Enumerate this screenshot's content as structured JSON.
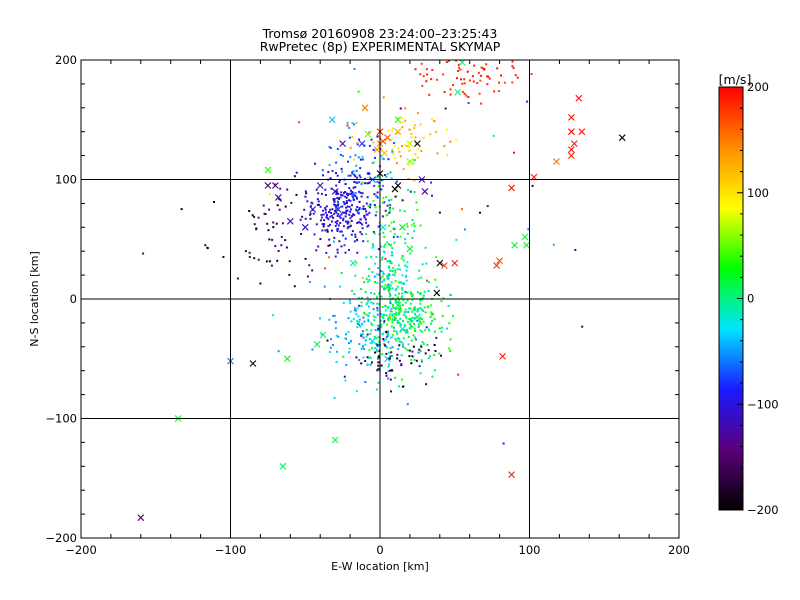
{
  "chart_data": {
    "type": "scatter",
    "title": "Tromsø 20160908 23:24:00–23:25:43",
    "subtitle": "RwPretec (8p) EXPERIMENTAL SKYMAP",
    "xlabel": "E-W location [km]",
    "ylabel": "N-S location [km]",
    "xlim": [
      -200,
      200
    ],
    "ylim": [
      -200,
      200
    ],
    "xticks": [
      -200,
      -100,
      0,
      100,
      200
    ],
    "yticks": [
      -200,
      -100,
      0,
      100,
      200
    ],
    "grid": true,
    "colorbar": {
      "label": "[m/s]",
      "range": [
        -200,
        200
      ],
      "ticks": [
        -200,
        -100,
        0,
        100,
        200
      ],
      "colormap": [
        "#000000",
        "#5a007a",
        "#1a1aff",
        "#00e5ff",
        "#00ff00",
        "#ffff00",
        "#ff8c00",
        "#ff0000"
      ]
    },
    "series": [
      {
        "marker": "cross",
        "points": [
          [
            -160,
            -183,
            -150
          ],
          [
            -135,
            -100,
            20
          ],
          [
            -85,
            -54,
            -180
          ],
          [
            -65,
            -140,
            10
          ],
          [
            -62,
            -50,
            30
          ],
          [
            -100,
            -52,
            -60
          ],
          [
            -75,
            95,
            -160
          ],
          [
            -70,
            95,
            -140
          ],
          [
            -68,
            85,
            -120
          ],
          [
            -60,
            65,
            -120
          ],
          [
            -50,
            60,
            -110
          ],
          [
            -30,
            90,
            -120
          ],
          [
            -28,
            75,
            -110
          ],
          [
            -32,
            150,
            -40
          ],
          [
            -30,
            -118,
            10
          ],
          [
            -38,
            -30,
            0
          ],
          [
            -42,
            -38,
            10
          ],
          [
            -75,
            108,
            40
          ],
          [
            -25,
            130,
            -120
          ],
          [
            -12,
            130,
            -80
          ],
          [
            -10,
            160,
            150
          ],
          [
            -8,
            138,
            50
          ],
          [
            -5,
            100,
            -70
          ],
          [
            0,
            140,
            180
          ],
          [
            0,
            130,
            150
          ],
          [
            2,
            132,
            170
          ],
          [
            5,
            135,
            160
          ],
          [
            -2,
            125,
            140
          ],
          [
            3,
            122,
            120
          ],
          [
            12,
            95,
            -200
          ],
          [
            12,
            150,
            40
          ],
          [
            15,
            60,
            20
          ],
          [
            20,
            42,
            20
          ],
          [
            20,
            130,
            70
          ],
          [
            20,
            115,
            60
          ],
          [
            28,
            100,
            -120
          ],
          [
            25,
            130,
            -200
          ],
          [
            30,
            90,
            -130
          ],
          [
            40,
            30,
            -200
          ],
          [
            38,
            5,
            -200
          ],
          [
            43,
            28,
            170
          ],
          [
            50,
            30,
            190
          ],
          [
            52,
            173,
            0
          ],
          [
            55,
            198,
            0
          ],
          [
            78,
            28,
            180
          ],
          [
            80,
            32,
            170
          ],
          [
            82,
            -48,
            190
          ],
          [
            88,
            93,
            195
          ],
          [
            90,
            45,
            20
          ],
          [
            88,
            -147,
            190
          ],
          [
            97,
            52,
            15
          ],
          [
            98,
            45,
            20
          ],
          [
            103,
            102,
            190
          ],
          [
            118,
            115,
            150
          ],
          [
            128,
            125,
            190
          ],
          [
            128,
            120,
            185
          ],
          [
            128,
            140,
            195
          ],
          [
            128,
            152,
            190
          ],
          [
            130,
            130,
            190
          ],
          [
            133,
            168,
            195
          ],
          [
            135,
            140,
            190
          ],
          [
            162,
            135,
            -200
          ],
          [
            0,
            105,
            -200
          ],
          [
            10,
            92,
            -200
          ],
          [
            2,
            60,
            -20
          ],
          [
            5,
            10,
            20
          ],
          [
            12,
            -5,
            10
          ],
          [
            25,
            -15,
            10
          ],
          [
            -5,
            -35,
            -30
          ],
          [
            5,
            -50,
            -40
          ],
          [
            15,
            -25,
            -20
          ],
          [
            -18,
            30,
            -10
          ],
          [
            -40,
            95,
            -110
          ],
          [
            -45,
            75,
            -100
          ],
          [
            12,
            140,
            130
          ]
        ]
      },
      {
        "marker": "dot",
        "clusters": [
          {
            "cx": -25,
            "cy": 75,
            "sx": 12,
            "sy": 15,
            "n": 260,
            "vmin": -120,
            "vmax": -80
          },
          {
            "cx": -15,
            "cy": 105,
            "sx": 15,
            "sy": 20,
            "n": 90,
            "vmin": -100,
            "vmax": -30
          },
          {
            "cx": -70,
            "cy": 55,
            "sx": 22,
            "sy": 20,
            "n": 70,
            "vmin": -200,
            "vmax": -130
          },
          {
            "cx": 5,
            "cy": 20,
            "sx": 10,
            "sy": 20,
            "n": 120,
            "vmin": -50,
            "vmax": 20
          },
          {
            "cx": 15,
            "cy": -15,
            "sx": 15,
            "sy": 18,
            "n": 260,
            "vmin": -10,
            "vmax": 40
          },
          {
            "cx": -5,
            "cy": -30,
            "sx": 20,
            "sy": 18,
            "n": 160,
            "vmin": -60,
            "vmax": -10
          },
          {
            "cx": 20,
            "cy": 135,
            "sx": 15,
            "sy": 14,
            "n": 70,
            "vmin": 80,
            "vmax": 150
          },
          {
            "cx": 55,
            "cy": 185,
            "sx": 18,
            "sy": 10,
            "n": 70,
            "vmin": 170,
            "vmax": 200
          },
          {
            "cx": 10,
            "cy": -50,
            "sx": 15,
            "sy": 12,
            "n": 60,
            "vmin": -200,
            "vmax": -110
          },
          {
            "cx": 5,
            "cy": 60,
            "sx": 12,
            "sy": 25,
            "n": 60,
            "vmin": 0,
            "vmax": 50
          },
          {
            "cx": 30,
            "cy": 60,
            "sx": 50,
            "sy": 70,
            "n": 50,
            "vmin": -200,
            "vmax": 200
          }
        ]
      }
    ]
  }
}
